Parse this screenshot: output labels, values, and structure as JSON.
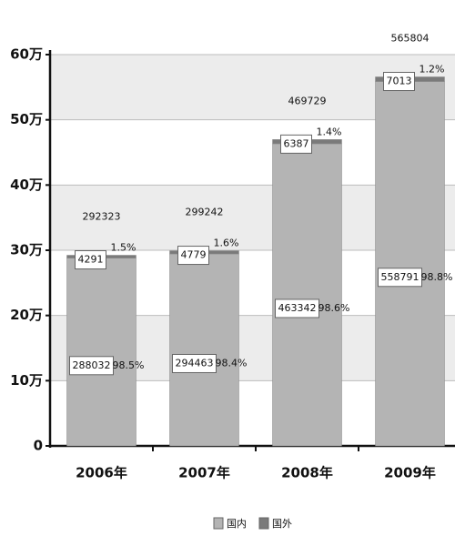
{
  "chart_data": {
    "type": "stacked_bar",
    "categories": [
      "2006年",
      "2007年",
      "2008年",
      "2009年"
    ],
    "series": [
      {
        "name": "国内",
        "color": "#b4b4b4",
        "values": [
          288032,
          294463,
          463342,
          558791
        ],
        "share_labels": [
          "98.5%",
          "98.4%",
          "98.6%",
          "98.8%"
        ]
      },
      {
        "name": "国外",
        "color": "#7a7a7a",
        "values": [
          4291,
          4779,
          6387,
          7013
        ],
        "share_labels": [
          "1.5%",
          "1.6%",
          "1.4%",
          "1.2%"
        ]
      }
    ],
    "totals": [
      292323,
      299242,
      469729,
      565804
    ],
    "ylim": [
      0,
      600000
    ],
    "yticks": [
      0,
      {
        "value": 100000,
        "label": "10万"
      },
      {
        "value": 200000,
        "label": "20万"
      },
      {
        "value": 300000,
        "label": "30万"
      },
      {
        "value": 400000,
        "label": "40万"
      },
      {
        "value": 500000,
        "label": "50万"
      },
      {
        "value": 600000,
        "label": "60万"
      }
    ],
    "grid": true,
    "legend": "bottom"
  }
}
